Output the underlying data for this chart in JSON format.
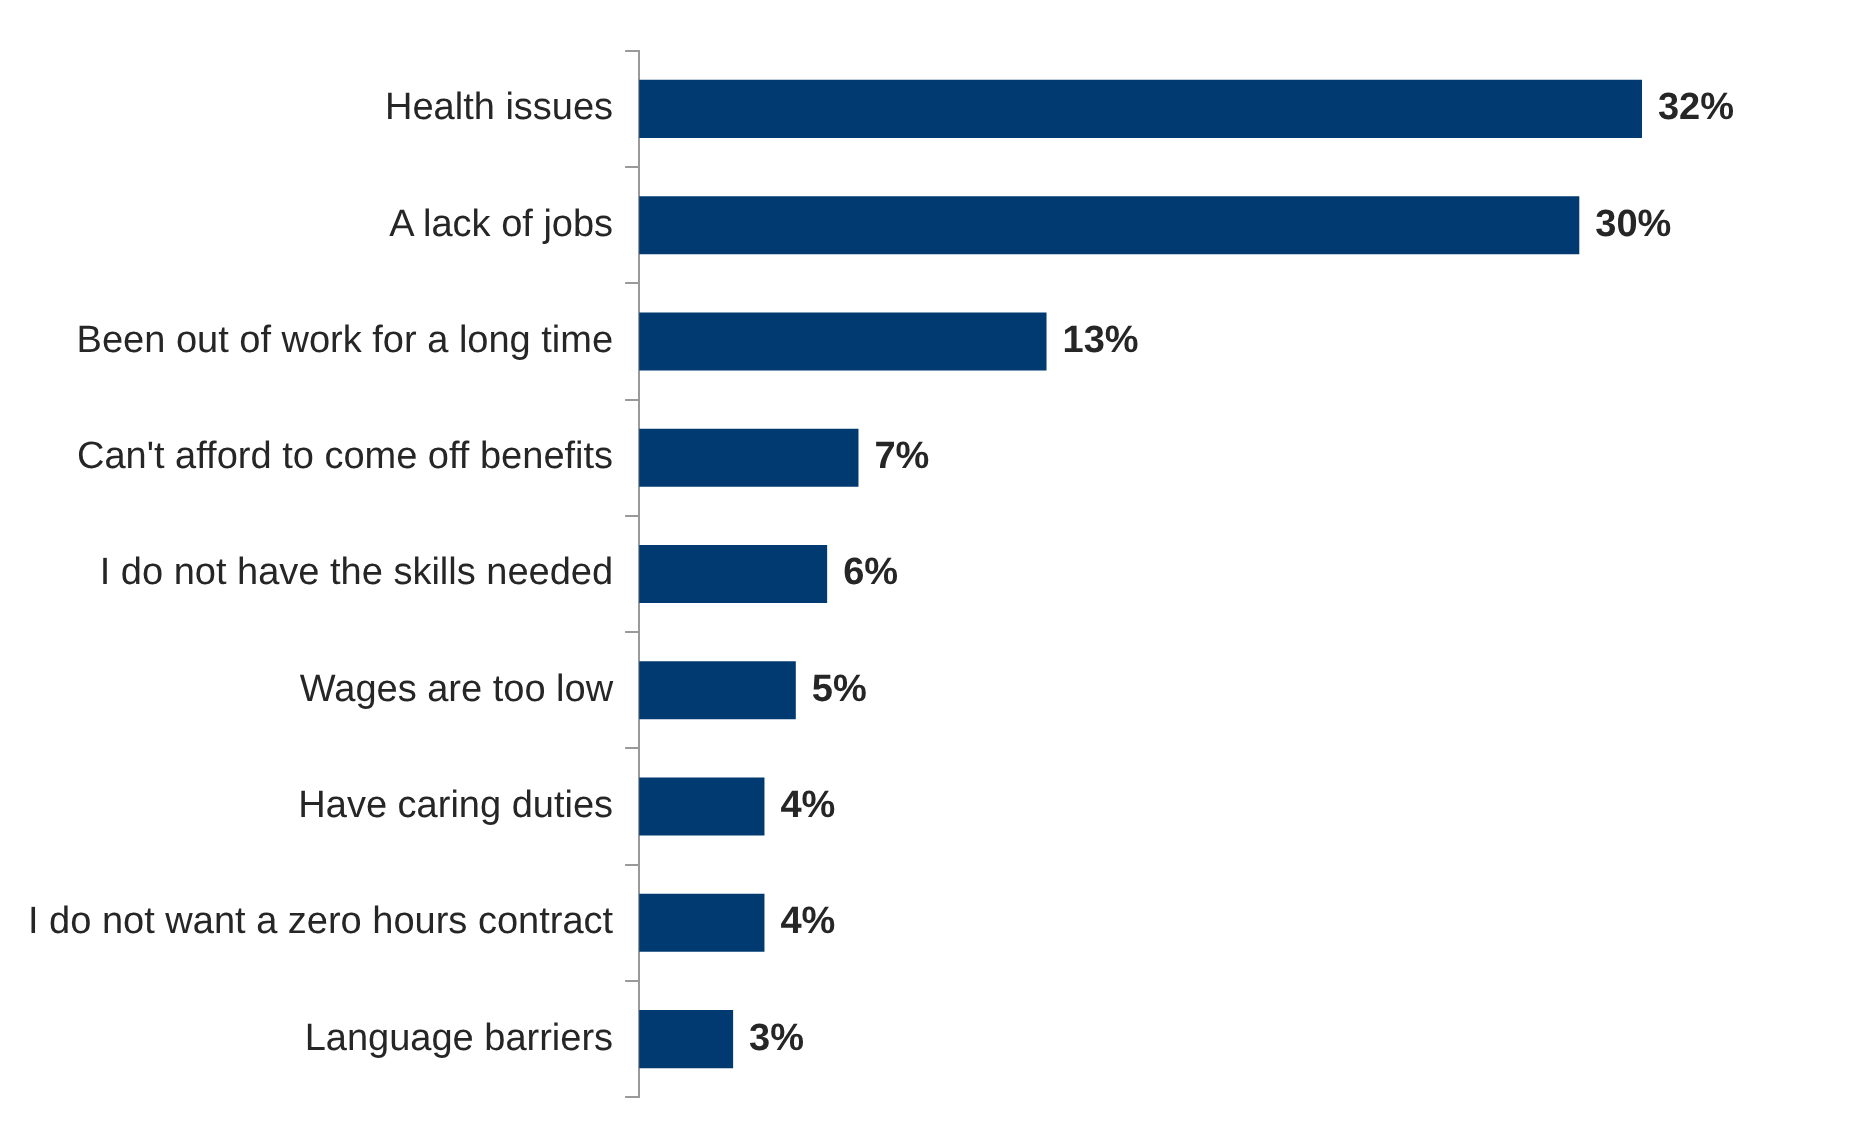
{
  "chart_data": {
    "type": "bar",
    "orientation": "horizontal",
    "categories": [
      "Health issues",
      "A lack of jobs",
      "Been out of work for a long time",
      "Can't afford to come off benefits",
      "I do not have the skills needed",
      "Wages are too low",
      "Have caring duties",
      "I do not want a zero hours contract",
      "Language barriers"
    ],
    "values": [
      32,
      30,
      13,
      7,
      6,
      5,
      4,
      4,
      3
    ],
    "value_labels": [
      "32%",
      "30%",
      "13%",
      "7%",
      "6%",
      "5%",
      "4%",
      "4%",
      "3%"
    ],
    "color": "#003a70",
    "grid": false,
    "legend": false
  }
}
